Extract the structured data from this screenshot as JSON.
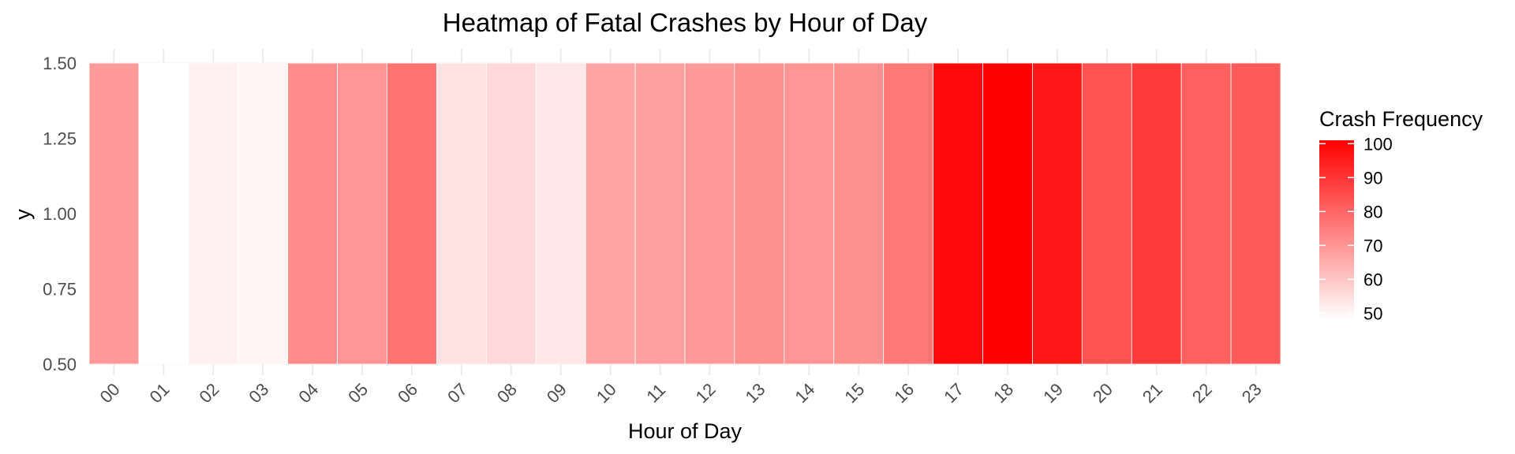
{
  "chart_data": {
    "type": "heatmap",
    "title": "Heatmap of Fatal Crashes by Hour of Day",
    "xlabel": "Hour of Day",
    "ylabel": "y",
    "categories": [
      "00",
      "01",
      "02",
      "03",
      "04",
      "05",
      "06",
      "07",
      "08",
      "09",
      "10",
      "11",
      "12",
      "13",
      "14",
      "15",
      "16",
      "17",
      "18",
      "19",
      "20",
      "21",
      "22",
      "23"
    ],
    "values": [
      69,
      48,
      51,
      50,
      72,
      70,
      77,
      54,
      56,
      53,
      67,
      68,
      69,
      71,
      70,
      71,
      76,
      99,
      101,
      96,
      84,
      89,
      81,
      82
    ],
    "ylim": [
      0.5,
      1.5
    ],
    "yticks": [
      "0.50",
      "0.75",
      "1.00",
      "1.25",
      "1.50"
    ],
    "legend": {
      "title": "Crash Frequency",
      "position": "right",
      "ticks": [
        "50",
        "60",
        "70",
        "80",
        "90",
        "100"
      ],
      "range": [
        48,
        101
      ],
      "low_color": "#ffffff",
      "high_color": "#ff0000"
    },
    "grid": true
  }
}
